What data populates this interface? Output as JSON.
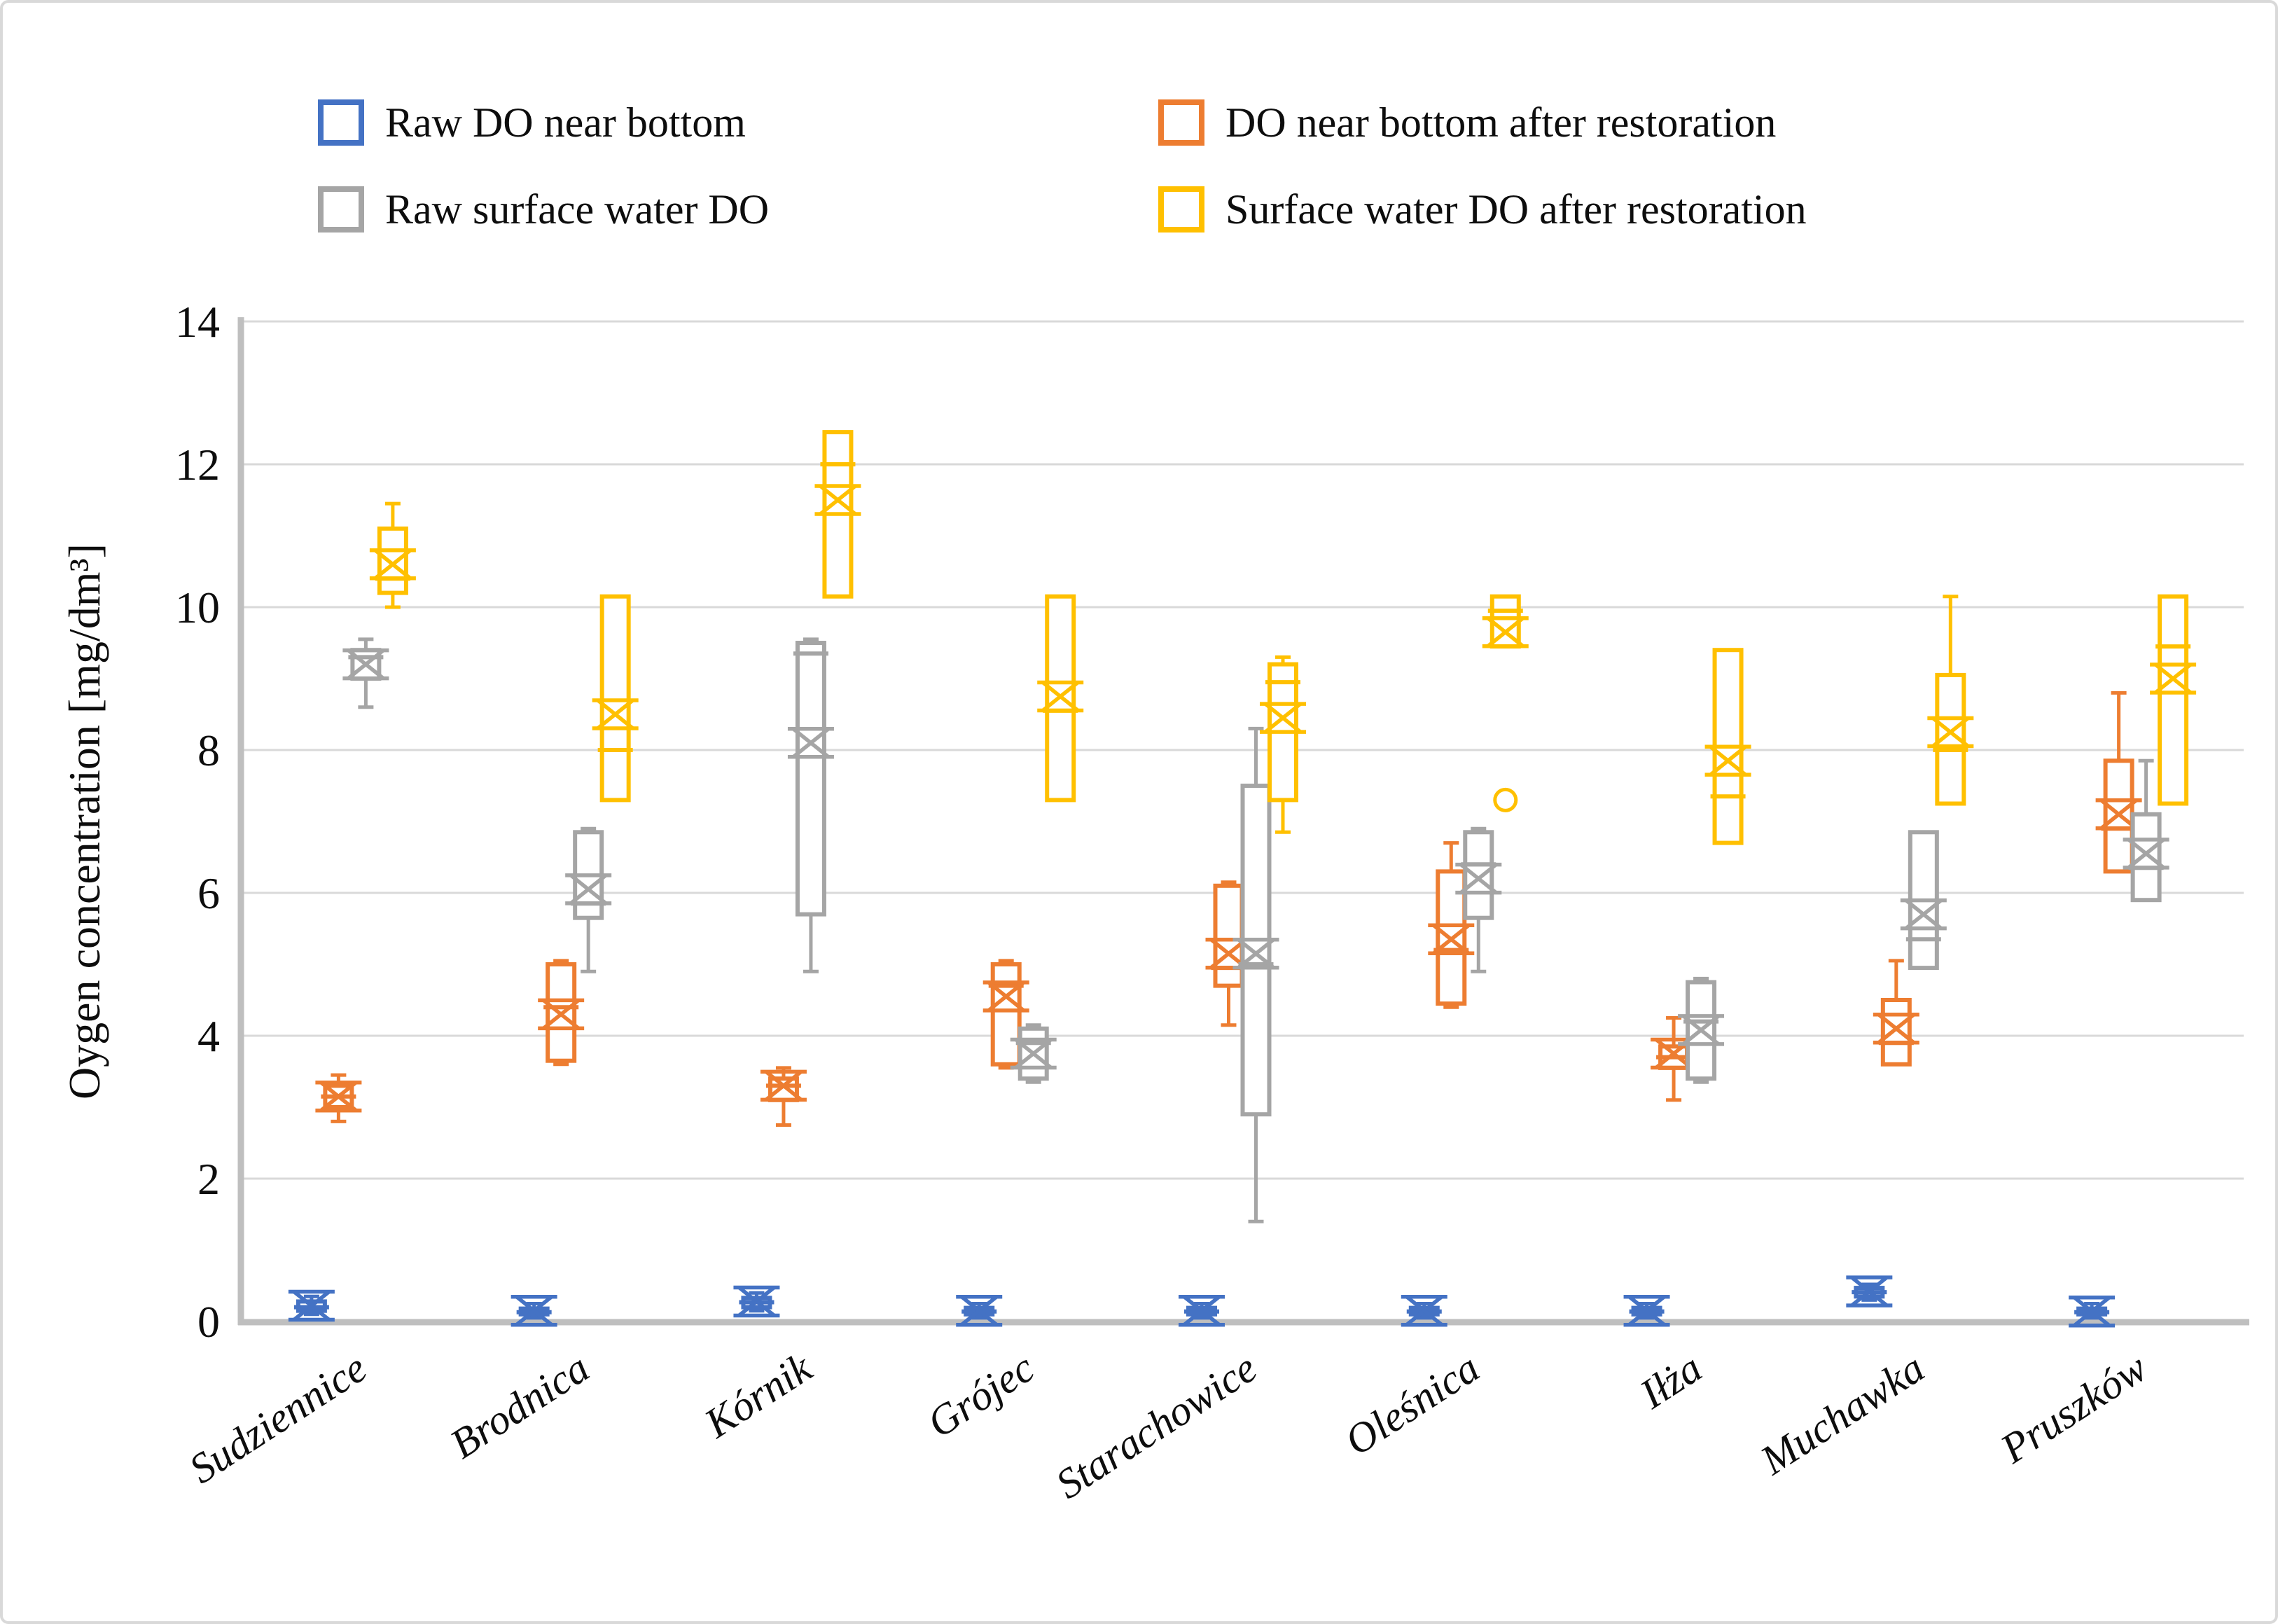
{
  "figure": {
    "background": "#ffffff",
    "border_color": "#d9d9d9"
  },
  "legend": {
    "position": "top",
    "columns": 2,
    "swatch_style": "hollow-square"
  },
  "chart_data": {
    "type": "boxplot",
    "title": "",
    "xlabel": "",
    "ylabel": "Oygen concentration  [mg/dm³]",
    "ylim": [
      0,
      14
    ],
    "yticks": [
      0,
      2,
      4,
      6,
      8,
      10,
      12,
      14
    ],
    "grid": true,
    "gridline_color": "#d9d9d9",
    "axis_color": "#bfbfbf",
    "text_color": "#0d0d0d",
    "categories": [
      "Sudziennice",
      "Brodnica",
      "Kórnik",
      "Grójec",
      "Starachowice",
      "Oleśnica",
      "Iłża",
      "Muchawka",
      "Pruszków"
    ],
    "series": [
      {
        "name": "Raw DO near bottom",
        "color": "#4472C4",
        "boxes": [
          {
            "min": 0.1,
            "q1": 0.15,
            "median": 0.2,
            "mean": 0.22,
            "q3": 0.28,
            "max": 0.35
          },
          {
            "min": 0.05,
            "q1": 0.1,
            "median": 0.13,
            "mean": 0.15,
            "q3": 0.18,
            "max": 0.25
          },
          {
            "min": 0.15,
            "q1": 0.2,
            "median": 0.27,
            "mean": 0.28,
            "q3": 0.33,
            "max": 0.4
          },
          {
            "min": 0.05,
            "q1": 0.1,
            "median": 0.14,
            "mean": 0.15,
            "q3": 0.19,
            "max": 0.25
          },
          {
            "min": 0.05,
            "q1": 0.1,
            "median": 0.14,
            "mean": 0.15,
            "q3": 0.19,
            "max": 0.25
          },
          {
            "min": 0.05,
            "q1": 0.1,
            "median": 0.14,
            "mean": 0.15,
            "q3": 0.19,
            "max": 0.25
          },
          {
            "min": 0.05,
            "q1": 0.1,
            "median": 0.14,
            "mean": 0.15,
            "q3": 0.19,
            "max": 0.25
          },
          {
            "min": 0.3,
            "q1": 0.35,
            "median": 0.41,
            "mean": 0.42,
            "q3": 0.47,
            "max": 0.52
          },
          {
            "min": 0.05,
            "q1": 0.1,
            "median": 0.13,
            "mean": 0.14,
            "q3": 0.18,
            "max": 0.25
          }
        ]
      },
      {
        "name": "DO near bottom after restoration",
        "color": "#ED7D31",
        "boxes": [
          {
            "min": 2.8,
            "q1": 3.0,
            "median": 3.15,
            "mean": 3.15,
            "q3": 3.3,
            "max": 3.45
          },
          {
            "min": 3.6,
            "q1": 3.65,
            "median": 4.4,
            "mean": 4.3,
            "q3": 5.0,
            "max": 5.05
          },
          {
            "min": 2.75,
            "q1": 3.1,
            "median": 3.3,
            "mean": 3.3,
            "q3": 3.4,
            "max": 3.55
          },
          {
            "min": 3.55,
            "q1": 3.6,
            "median": 4.7,
            "mean": 4.55,
            "q3": 5.0,
            "max": 5.05
          },
          {
            "min": 4.15,
            "q1": 4.7,
            "median": 4.95,
            "mean": 5.15,
            "q3": 6.1,
            "max": 6.15
          },
          {
            "min": 4.4,
            "q1": 4.45,
            "median": 5.2,
            "mean": 5.35,
            "q3": 6.3,
            "max": 6.7
          },
          {
            "min": 3.1,
            "q1": 3.55,
            "median": 3.7,
            "mean": 3.75,
            "q3": 3.85,
            "max": 4.25
          },
          {
            "min": 3.6,
            "q1": 3.6,
            "median": 3.9,
            "mean": 4.1,
            "q3": 4.5,
            "max": 5.05
          },
          {
            "min": 6.3,
            "q1": 6.3,
            "median": 6.9,
            "mean": 7.1,
            "q3": 7.85,
            "max": 8.8
          }
        ]
      },
      {
        "name": "Raw surface water DO",
        "color": "#A5A5A5",
        "boxes": [
          {
            "min": 8.6,
            "q1": 9.0,
            "median": 9.3,
            "mean": 9.2,
            "q3": 9.4,
            "max": 9.55
          },
          {
            "min": 4.9,
            "q1": 5.65,
            "median": 5.85,
            "mean": 6.05,
            "q3": 6.85,
            "max": 6.9
          },
          {
            "min": 4.9,
            "q1": 5.7,
            "median": 9.35,
            "mean": 8.1,
            "q3": 9.5,
            "max": 9.55
          },
          {
            "min": 3.35,
            "q1": 3.4,
            "median": 3.9,
            "mean": 3.75,
            "q3": 4.1,
            "max": 4.15
          },
          {
            "min": 1.4,
            "q1": 2.9,
            "median": 5.0,
            "mean": 5.15,
            "q3": 7.5,
            "max": 8.3
          },
          {
            "min": 4.9,
            "q1": 5.65,
            "median": 6.4,
            "mean": 6.2,
            "q3": 6.85,
            "max": 6.9
          },
          {
            "min": 3.35,
            "q1": 3.4,
            "median": 4.2,
            "mean": 4.08,
            "q3": 4.75,
            "max": 4.8
          },
          {
            "min": 4.95,
            "q1": 4.95,
            "median": 5.35,
            "mean": 5.7,
            "q3": 6.85,
            "max": 6.85
          },
          {
            "min": 5.9,
            "q1": 5.9,
            "median": 6.35,
            "mean": 6.55,
            "q3": 7.1,
            "max": 7.85
          }
        ]
      },
      {
        "name": "Surface water DO after restoration",
        "color": "#FFC000",
        "boxes": [
          {
            "min": 10.0,
            "q1": 10.2,
            "median": 10.4,
            "mean": 10.6,
            "q3": 11.1,
            "max": 11.45
          },
          {
            "min": 7.3,
            "q1": 7.3,
            "median": 8.0,
            "mean": 8.5,
            "q3": 10.15,
            "max": 10.15
          },
          {
            "min": 10.15,
            "q1": 10.15,
            "median": 12.0,
            "mean": 11.5,
            "q3": 12.45,
            "max": 12.45
          },
          {
            "min": 7.3,
            "q1": 7.3,
            "median": 8.55,
            "mean": 8.75,
            "q3": 10.15,
            "max": 10.15
          },
          {
            "min": 6.85,
            "q1": 7.3,
            "median": 8.95,
            "mean": 8.45,
            "q3": 9.2,
            "max": 9.3
          },
          {
            "min": 9.45,
            "q1": 9.45,
            "median": 9.95,
            "mean": 9.65,
            "q3": 10.15,
            "max": 10.15,
            "outliers": [
              7.3
            ]
          },
          {
            "min": 6.7,
            "q1": 6.7,
            "median": 7.35,
            "mean": 7.85,
            "q3": 9.4,
            "max": 9.4
          },
          {
            "min": 7.25,
            "q1": 7.25,
            "median": 8.0,
            "mean": 8.25,
            "q3": 9.05,
            "max": 10.15
          },
          {
            "min": 7.25,
            "q1": 7.25,
            "median": 9.45,
            "mean": 9.0,
            "q3": 10.15,
            "max": 10.15
          }
        ]
      }
    ]
  }
}
